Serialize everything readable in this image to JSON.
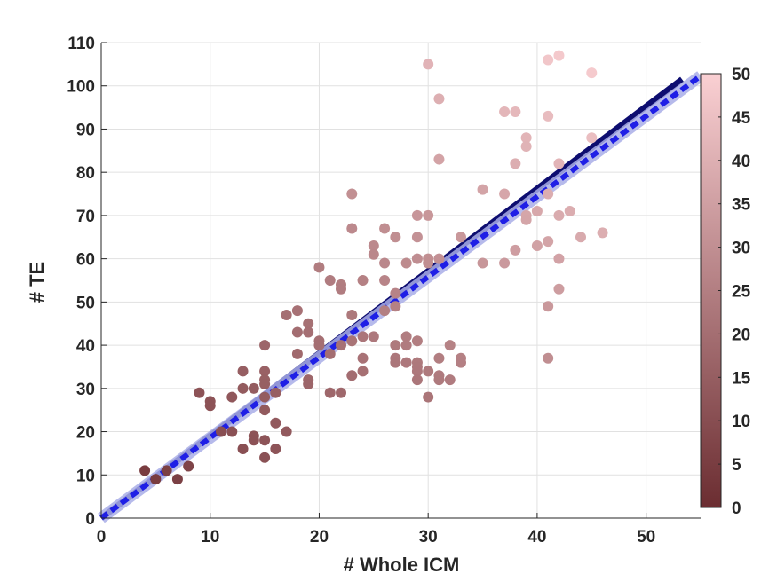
{
  "chart_data": {
    "type": "scatter",
    "title": "",
    "xlabel": "# Whole ICM",
    "ylabel": "# TE",
    "xlim": [
      0,
      55
    ],
    "ylim": [
      0,
      110
    ],
    "xticks": [
      0,
      10,
      20,
      30,
      40,
      50
    ],
    "yticks": [
      0,
      10,
      20,
      30,
      40,
      50,
      60,
      70,
      80,
      90,
      100,
      110
    ],
    "grid": true,
    "colorbar": {
      "range": [
        0,
        50
      ],
      "ticks": [
        0,
        5,
        10,
        15,
        20,
        25,
        30,
        35,
        40,
        45,
        50
      ],
      "color_low": "#6b2d31",
      "color_high": "#fad0d3"
    },
    "points": [
      [
        4,
        11
      ],
      [
        5,
        9
      ],
      [
        6,
        11
      ],
      [
        7,
        9
      ],
      [
        8,
        12
      ],
      [
        9,
        29
      ],
      [
        10,
        27
      ],
      [
        10,
        26
      ],
      [
        11,
        20
      ],
      [
        12,
        28
      ],
      [
        12,
        20
      ],
      [
        13,
        34
      ],
      [
        13,
        30
      ],
      [
        13,
        16
      ],
      [
        14,
        30
      ],
      [
        14,
        19
      ],
      [
        14,
        18
      ],
      [
        15,
        40
      ],
      [
        15,
        34
      ],
      [
        15,
        32
      ],
      [
        15,
        31
      ],
      [
        15,
        28
      ],
      [
        15,
        25
      ],
      [
        15,
        18
      ],
      [
        15,
        14
      ],
      [
        16,
        29
      ],
      [
        16,
        22
      ],
      [
        16,
        16
      ],
      [
        17,
        47
      ],
      [
        17,
        20
      ],
      [
        18,
        48
      ],
      [
        18,
        43
      ],
      [
        18,
        38
      ],
      [
        19,
        45
      ],
      [
        19,
        43
      ],
      [
        19,
        32
      ],
      [
        19,
        31
      ],
      [
        20,
        58
      ],
      [
        20,
        41
      ],
      [
        20,
        40
      ],
      [
        21,
        55
      ],
      [
        21,
        38
      ],
      [
        21,
        29
      ],
      [
        22,
        54
      ],
      [
        22,
        53
      ],
      [
        22,
        40
      ],
      [
        22,
        29
      ],
      [
        23,
        75
      ],
      [
        23,
        67
      ],
      [
        23,
        47
      ],
      [
        23,
        41
      ],
      [
        23,
        33
      ],
      [
        24,
        55
      ],
      [
        24,
        42
      ],
      [
        24,
        37
      ],
      [
        24,
        34
      ],
      [
        25,
        63
      ],
      [
        25,
        61
      ],
      [
        25,
        42
      ],
      [
        26,
        67
      ],
      [
        26,
        59
      ],
      [
        26,
        55
      ],
      [
        26,
        48
      ],
      [
        27,
        65
      ],
      [
        27,
        52
      ],
      [
        27,
        49
      ],
      [
        27,
        40
      ],
      [
        27,
        37
      ],
      [
        27,
        36
      ],
      [
        28,
        59
      ],
      [
        28,
        42
      ],
      [
        28,
        40
      ],
      [
        28,
        36
      ],
      [
        29,
        70
      ],
      [
        29,
        65
      ],
      [
        29,
        60
      ],
      [
        29,
        41
      ],
      [
        29,
        36
      ],
      [
        29,
        35
      ],
      [
        29,
        34
      ],
      [
        29,
        32
      ],
      [
        30,
        105
      ],
      [
        30,
        70
      ],
      [
        30,
        60
      ],
      [
        30,
        59
      ],
      [
        30,
        34
      ],
      [
        30,
        28
      ],
      [
        31,
        97
      ],
      [
        31,
        83
      ],
      [
        31,
        60
      ],
      [
        31,
        37
      ],
      [
        31,
        33
      ],
      [
        31,
        32
      ],
      [
        32,
        40
      ],
      [
        32,
        32
      ],
      [
        33,
        65
      ],
      [
        33,
        37
      ],
      [
        33,
        36
      ],
      [
        35,
        76
      ],
      [
        35,
        59
      ],
      [
        37,
        94
      ],
      [
        37,
        75
      ],
      [
        37,
        59
      ],
      [
        38,
        94
      ],
      [
        38,
        82
      ],
      [
        38,
        62
      ],
      [
        39,
        88
      ],
      [
        39,
        86
      ],
      [
        39,
        70
      ],
      [
        39,
        69
      ],
      [
        40,
        71
      ],
      [
        40,
        63
      ],
      [
        41,
        106
      ],
      [
        41,
        93
      ],
      [
        41,
        75
      ],
      [
        41,
        64
      ],
      [
        41,
        49
      ],
      [
        41,
        37
      ],
      [
        42,
        107
      ],
      [
        42,
        82
      ],
      [
        42,
        70
      ],
      [
        42,
        60
      ],
      [
        42,
        53
      ],
      [
        43,
        71
      ],
      [
        44,
        65
      ],
      [
        45,
        103
      ],
      [
        45,
        88
      ],
      [
        46,
        66
      ]
    ],
    "lines": [
      {
        "style": "solid",
        "color": "#0d0d70",
        "x": [
          0,
          53.3
        ],
        "y": [
          0,
          101.5
        ]
      },
      {
        "style": "dashed",
        "color": "#1f1fe6",
        "band_color": "#a9aee8",
        "x": [
          0,
          55
        ],
        "y": [
          0,
          102.3
        ]
      }
    ]
  }
}
